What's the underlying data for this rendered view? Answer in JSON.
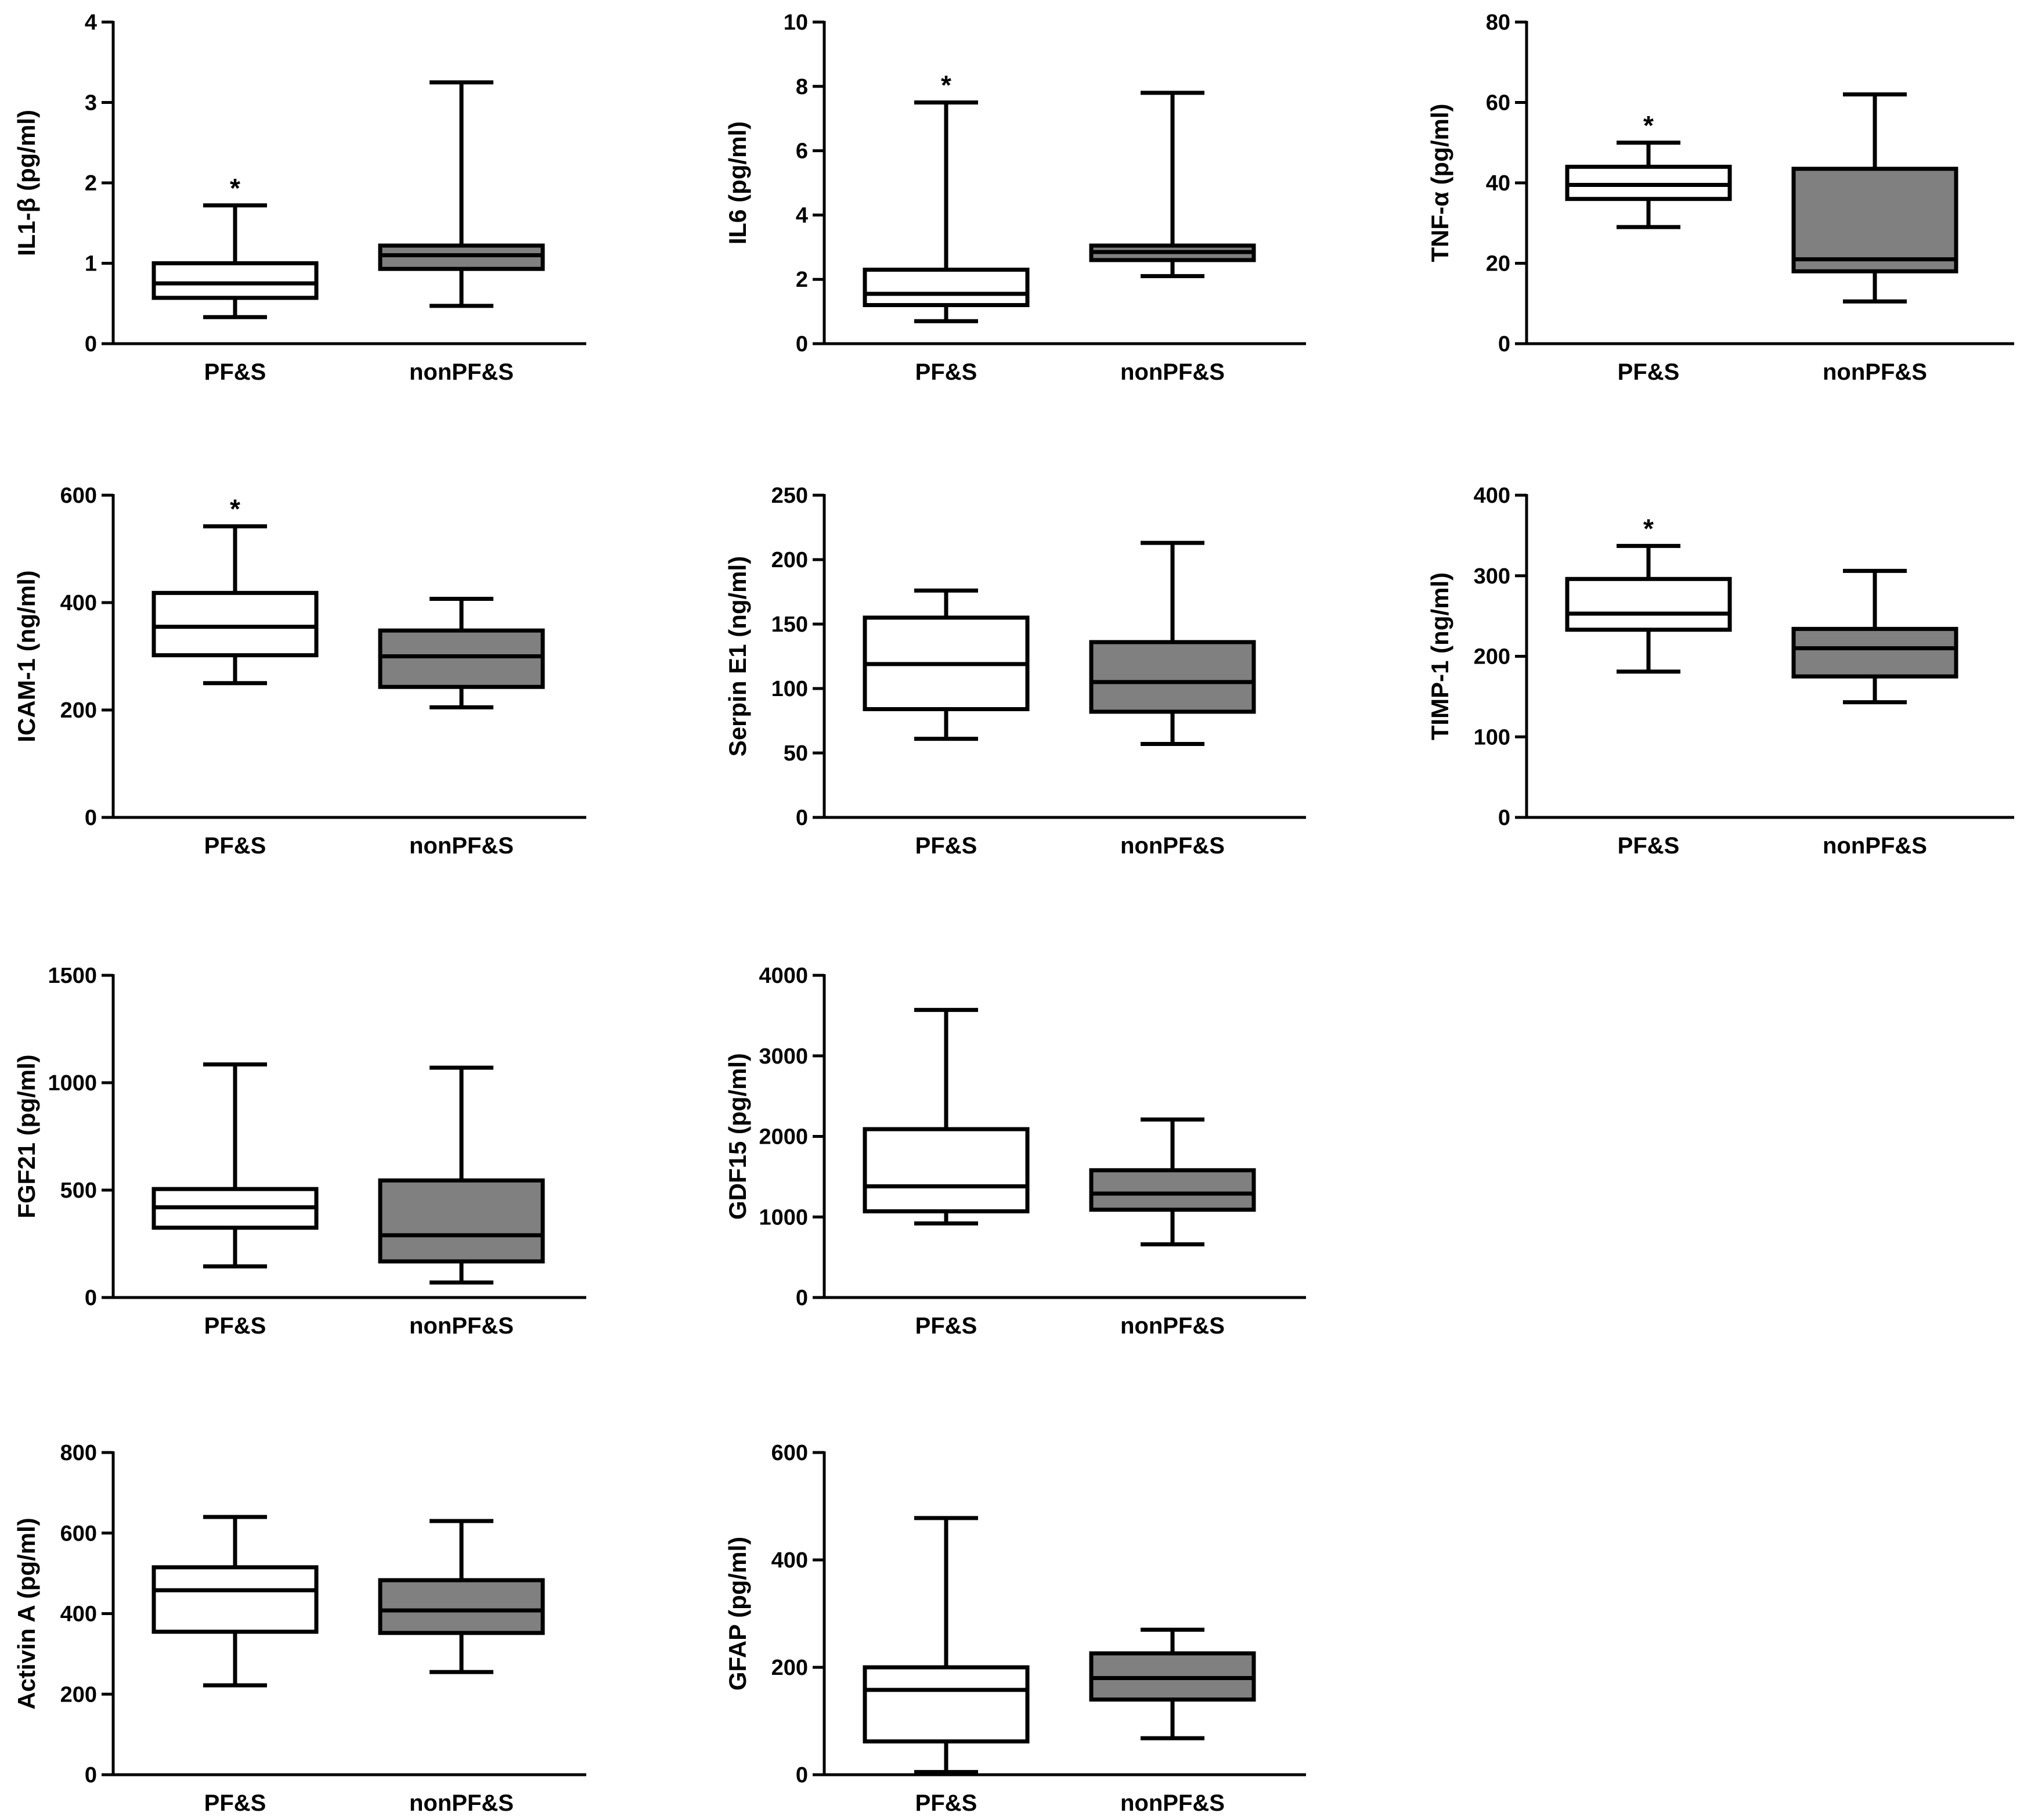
{
  "chart_data": [
    {
      "type": "boxplot",
      "ylabel": "IL1-β (pg/ml)",
      "ylim": [
        0,
        4
      ],
      "yticks": [
        0,
        1,
        2,
        3,
        4
      ],
      "categories": [
        "PF&S",
        "nonPF&S"
      ],
      "boxes": [
        {
          "category": "PF&S",
          "fill": "#ffffff",
          "min": 0.33,
          "q1": 0.57,
          "median": 0.75,
          "q3": 1.0,
          "max": 1.72,
          "significant": true
        },
        {
          "category": "nonPF&S",
          "fill": "#808080",
          "min": 0.47,
          "q1": 0.93,
          "median": 1.1,
          "q3": 1.22,
          "max": 3.25,
          "significant": false
        }
      ],
      "significance_marker": "*"
    },
    {
      "type": "boxplot",
      "ylabel": "IL6 (pg/ml)",
      "ylim": [
        0,
        10
      ],
      "yticks": [
        0,
        2,
        4,
        6,
        8,
        10
      ],
      "categories": [
        "PF&S",
        "nonPF&S"
      ],
      "boxes": [
        {
          "category": "PF&S",
          "fill": "#ffffff",
          "min": 0.7,
          "q1": 1.2,
          "median": 1.55,
          "q3": 2.3,
          "max": 7.5,
          "significant": true
        },
        {
          "category": "nonPF&S",
          "fill": "#808080",
          "min": 2.1,
          "q1": 2.6,
          "median": 2.85,
          "q3": 3.05,
          "max": 7.8,
          "significant": false
        }
      ],
      "significance_marker": "*"
    },
    {
      "type": "boxplot",
      "ylabel": "TNF-α (pg/ml)",
      "ylim": [
        0,
        80
      ],
      "yticks": [
        0,
        20,
        40,
        60,
        80
      ],
      "categories": [
        "PF&S",
        "nonPF&S"
      ],
      "boxes": [
        {
          "category": "PF&S",
          "fill": "#ffffff",
          "min": 29,
          "q1": 36,
          "median": 39.5,
          "q3": 44,
          "max": 50,
          "significant": true
        },
        {
          "category": "nonPF&S",
          "fill": "#808080",
          "min": 10.5,
          "q1": 18,
          "median": 21,
          "q3": 43.5,
          "max": 62,
          "significant": false
        }
      ],
      "significance_marker": "*"
    },
    {
      "type": "boxplot",
      "ylabel": "ICAM-1 (ng/ml)",
      "ylim": [
        0,
        600
      ],
      "yticks": [
        0,
        200,
        400,
        600
      ],
      "categories": [
        "PF&S",
        "nonPF&S"
      ],
      "boxes": [
        {
          "category": "PF&S",
          "fill": "#ffffff",
          "min": 250,
          "q1": 302,
          "median": 355,
          "q3": 418,
          "max": 542,
          "significant": true
        },
        {
          "category": "nonPF&S",
          "fill": "#808080",
          "min": 205,
          "q1": 243,
          "median": 300,
          "q3": 348,
          "max": 407,
          "significant": false
        }
      ],
      "significance_marker": "*"
    },
    {
      "type": "boxplot",
      "ylabel": "Serpin E1 (ng/ml)",
      "ylim": [
        0,
        250
      ],
      "yticks": [
        0,
        50,
        100,
        150,
        200,
        250
      ],
      "categories": [
        "PF&S",
        "nonPF&S"
      ],
      "boxes": [
        {
          "category": "PF&S",
          "fill": "#ffffff",
          "min": 61,
          "q1": 84,
          "median": 119,
          "q3": 155,
          "max": 176,
          "significant": false
        },
        {
          "category": "nonPF&S",
          "fill": "#808080",
          "min": 57,
          "q1": 82,
          "median": 105,
          "q3": 136,
          "max": 213,
          "significant": false
        }
      ],
      "significance_marker": "*"
    },
    {
      "type": "boxplot",
      "ylabel": "TIMP-1 (ng/ml)",
      "ylim": [
        0,
        400
      ],
      "yticks": [
        0,
        100,
        200,
        300,
        400
      ],
      "categories": [
        "PF&S",
        "nonPF&S"
      ],
      "boxes": [
        {
          "category": "PF&S",
          "fill": "#ffffff",
          "min": 181,
          "q1": 233,
          "median": 253,
          "q3": 296,
          "max": 337,
          "significant": true
        },
        {
          "category": "nonPF&S",
          "fill": "#808080",
          "min": 143,
          "q1": 175,
          "median": 210,
          "q3": 234,
          "max": 306,
          "significant": false
        }
      ],
      "significance_marker": "*"
    },
    {
      "type": "boxplot",
      "ylabel": "FGF21 (pg/ml)",
      "ylim": [
        0,
        1500
      ],
      "yticks": [
        0,
        500,
        1000,
        1500
      ],
      "categories": [
        "PF&S",
        "nonPF&S"
      ],
      "boxes": [
        {
          "category": "PF&S",
          "fill": "#ffffff",
          "min": 145,
          "q1": 325,
          "median": 420,
          "q3": 505,
          "max": 1085,
          "significant": false
        },
        {
          "category": "nonPF&S",
          "fill": "#808080",
          "min": 70,
          "q1": 168,
          "median": 290,
          "q3": 545,
          "max": 1070,
          "significant": false
        }
      ],
      "significance_marker": "*"
    },
    {
      "type": "boxplot",
      "ylabel": "GDF15 (pg/ml)",
      "ylim": [
        0,
        4000
      ],
      "yticks": [
        0,
        1000,
        2000,
        3000,
        4000
      ],
      "categories": [
        "PF&S",
        "nonPF&S"
      ],
      "boxes": [
        {
          "category": "PF&S",
          "fill": "#ffffff",
          "min": 920,
          "q1": 1070,
          "median": 1380,
          "q3": 2090,
          "max": 3570,
          "significant": false
        },
        {
          "category": "nonPF&S",
          "fill": "#808080",
          "min": 660,
          "q1": 1090,
          "median": 1290,
          "q3": 1580,
          "max": 2210,
          "significant": false
        }
      ],
      "significance_marker": "*"
    },
    {
      "type": "boxplot",
      "ylabel": "Activin A (pg/ml)",
      "ylim": [
        0,
        800
      ],
      "yticks": [
        0,
        200,
        400,
        600,
        800
      ],
      "categories": [
        "PF&S",
        "nonPF&S"
      ],
      "boxes": [
        {
          "category": "PF&S",
          "fill": "#ffffff",
          "min": 222,
          "q1": 355,
          "median": 458,
          "q3": 515,
          "max": 640,
          "significant": false
        },
        {
          "category": "nonPF&S",
          "fill": "#808080",
          "min": 255,
          "q1": 352,
          "median": 408,
          "q3": 483,
          "max": 630,
          "significant": false
        }
      ],
      "significance_marker": "*"
    },
    {
      "type": "boxplot",
      "ylabel": "GFAP (pg/ml)",
      "ylim": [
        0,
        600
      ],
      "yticks": [
        0,
        200,
        400,
        600
      ],
      "categories": [
        "PF&S",
        "nonPF&S"
      ],
      "boxes": [
        {
          "category": "PF&S",
          "fill": "#ffffff",
          "min": 5,
          "q1": 62,
          "median": 158,
          "q3": 200,
          "max": 478,
          "significant": false
        },
        {
          "category": "nonPF&S",
          "fill": "#808080",
          "min": 68,
          "q1": 140,
          "median": 180,
          "q3": 226,
          "max": 270,
          "significant": false
        }
      ],
      "significance_marker": "*"
    }
  ]
}
